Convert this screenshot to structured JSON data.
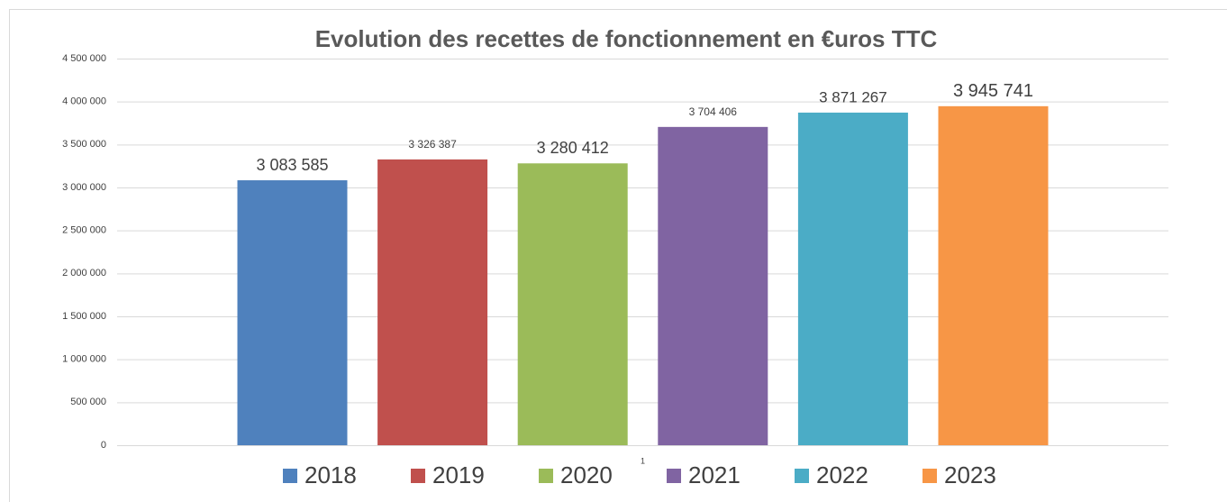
{
  "chart_data": {
    "type": "bar",
    "title": "Evolution des recettes de fonctionnement en €uros TTC",
    "categories": [
      "1"
    ],
    "series": [
      {
        "name": "2018",
        "color": "#4f81bd",
        "values": [
          3083585
        ],
        "value_labels": [
          "3 083 585"
        ]
      },
      {
        "name": "2019",
        "color": "#c0504d",
        "values": [
          3326387
        ],
        "value_labels": [
          "3 326 387"
        ]
      },
      {
        "name": "2020",
        "color": "#9bbb59",
        "values": [
          3280412
        ],
        "value_labels": [
          "3 280 412"
        ]
      },
      {
        "name": "2021",
        "color": "#8064a2",
        "values": [
          3704406
        ],
        "value_labels": [
          "3 704 406"
        ]
      },
      {
        "name": "2022",
        "color": "#4bacc6",
        "values": [
          3871267
        ],
        "value_labels": [
          "3 871 267"
        ]
      },
      {
        "name": "2023",
        "color": "#f79646",
        "values": [
          3945741
        ],
        "value_labels": [
          "3 945 741"
        ]
      }
    ],
    "ylim": [
      0,
      4500000
    ],
    "yticks": [
      0,
      {
        "value": 500000,
        "label": "500 000"
      },
      {
        "value": 1000000,
        "label": "1 000 000"
      },
      {
        "value": 1500000,
        "label": "1 500 000"
      },
      {
        "value": 2000000,
        "label": "2 000 000"
      },
      {
        "value": 2500000,
        "label": "2 500 000"
      },
      {
        "value": 3000000,
        "label": "3 000 000"
      },
      {
        "value": 3500000,
        "label": "3 500 000"
      },
      {
        "value": 4000000,
        "label": "4 000 000"
      },
      {
        "value": 4500000,
        "label": "4 500 000"
      }
    ],
    "grid": true,
    "legend": "bottom"
  }
}
